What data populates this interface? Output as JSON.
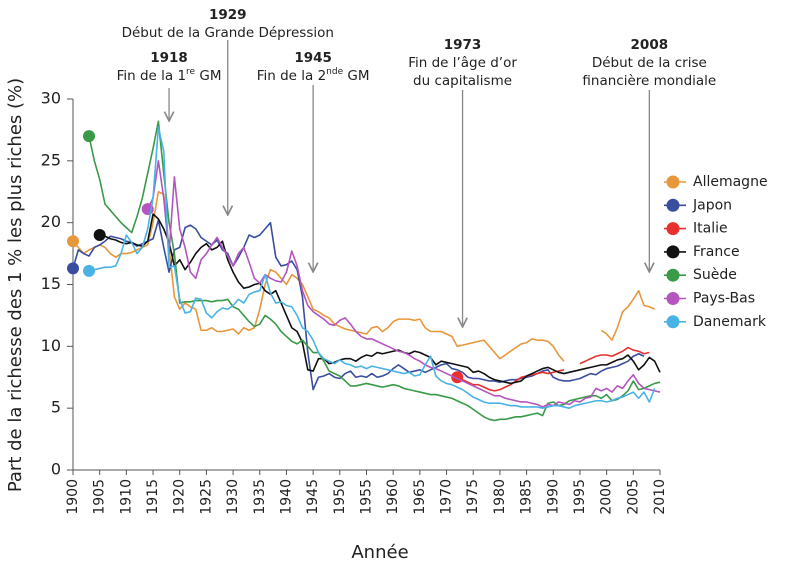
{
  "chart_data": {
    "type": "line",
    "y_label": "Part de la richesse des 1 % les plus riches (%)",
    "x_label": "Année",
    "xlim": [
      1900,
      2010
    ],
    "ylim": [
      0,
      30
    ],
    "xticks": [
      1900,
      1905,
      1910,
      1915,
      1920,
      1925,
      1930,
      1935,
      1940,
      1945,
      1950,
      1955,
      1960,
      1965,
      1970,
      1975,
      1980,
      1985,
      1990,
      1995,
      2000,
      2005,
      2010
    ],
    "yticks": [
      0,
      5,
      10,
      15,
      20,
      25,
      30
    ],
    "x": [
      1900,
      1901,
      1902,
      1903,
      1904,
      1905,
      1906,
      1907,
      1908,
      1909,
      1910,
      1911,
      1912,
      1913,
      1914,
      1915,
      1916,
      1917,
      1918,
      1919,
      1920,
      1921,
      1922,
      1923,
      1924,
      1925,
      1926,
      1927,
      1928,
      1929,
      1930,
      1931,
      1932,
      1933,
      1934,
      1935,
      1936,
      1937,
      1938,
      1939,
      1940,
      1941,
      1942,
      1943,
      1944,
      1945,
      1946,
      1947,
      1948,
      1949,
      1950,
      1951,
      1952,
      1953,
      1954,
      1955,
      1956,
      1957,
      1958,
      1959,
      1960,
      1961,
      1962,
      1963,
      1964,
      1965,
      1966,
      1967,
      1968,
      1969,
      1970,
      1971,
      1972,
      1973,
      1974,
      1975,
      1976,
      1977,
      1978,
      1979,
      1980,
      1981,
      1982,
      1983,
      1984,
      1985,
      1986,
      1987,
      1988,
      1989,
      1990,
      1991,
      1992,
      1993,
      1994,
      1995,
      1996,
      1997,
      1998,
      1999,
      2000,
      2001,
      2002,
      2003,
      2004,
      2005,
      2006,
      2007,
      2008,
      2009,
      2010
    ],
    "series": [
      {
        "name": "Allemagne",
        "color": "#e8973a",
        "values": [
          18.5,
          18,
          17.5,
          17.8,
          18,
          18.2,
          18,
          17.5,
          17.2,
          17.5,
          17.5,
          17.6,
          17.8,
          18,
          18.2,
          20,
          22.5,
          22.3,
          18,
          14,
          13,
          13.5,
          13.2,
          13,
          11.3,
          11.3,
          11.5,
          11.2,
          11.2,
          11.3,
          11.4,
          11,
          11.5,
          11.3,
          11.5,
          13,
          15,
          16.2,
          16,
          15.5,
          15,
          15.8,
          15.5,
          15,
          14,
          13,
          12.8,
          12.5,
          12.3,
          11.8,
          11.6,
          11.4,
          11.3,
          11.2,
          11.1,
          11,
          11.5,
          11.6,
          11.2,
          11.5,
          12,
          12.2,
          12.2,
          12.2,
          12.1,
          12.2,
          11.5,
          11.2,
          11.2,
          11.2,
          11,
          10.8,
          10,
          10.1,
          10.2,
          10.3,
          10.4,
          10.5,
          10,
          9.5,
          9,
          9.3,
          9.6,
          9.9,
          10.2,
          10.3,
          10.6,
          10.5,
          10.5,
          10.4,
          10,
          9.3,
          8.8,
          null,
          null,
          null,
          null,
          null,
          null,
          11.3,
          11,
          10.5,
          11.5,
          12.8,
          13.2,
          13.8,
          14.5,
          13.3,
          13.2,
          13,
          null
        ]
      },
      {
        "name": "Japon",
        "color": "#3a4ea0",
        "values": [
          16.3,
          17.8,
          17.5,
          17.3,
          18,
          18.2,
          18.5,
          18.9,
          18.8,
          18.7,
          18.5,
          18.4,
          18.1,
          18.3,
          18.5,
          18.7,
          20.2,
          18,
          16,
          17.8,
          18,
          19.6,
          19.8,
          19.5,
          18.8,
          18.5,
          18.2,
          18.6,
          17.8,
          17.5,
          16.5,
          17.2,
          18,
          19,
          18.8,
          19,
          19.5,
          20,
          17.2,
          16.5,
          16.6,
          16.9,
          16.2,
          14,
          9.5,
          6.5,
          7.5,
          7.6,
          7.8,
          7.5,
          7.4,
          7.8,
          8,
          7.5,
          7.6,
          7.5,
          7.8,
          7.5,
          7.6,
          7.8,
          8.2,
          8.5,
          8.2,
          7.9,
          8,
          8.1,
          7.9,
          8.1,
          8.3,
          8.5,
          8.6,
          8.2,
          8.1,
          7.9,
          7.5,
          7.4,
          7.4,
          7.3,
          7.2,
          7.2,
          7.1,
          7.2,
          7.3,
          7.3,
          7.4,
          7.5,
          7.6,
          7.8,
          8,
          8.1,
          7.5,
          7.3,
          7.2,
          7.2,
          7.3,
          7.4,
          7.6,
          7.8,
          7.7,
          8,
          8.2,
          8.3,
          8.4,
          8.6,
          8.8,
          9.2,
          9.4,
          9.2,
          null,
          null,
          null
        ]
      },
      {
        "name": "Italie",
        "color": "#e8302c",
        "values": [
          null,
          null,
          null,
          null,
          null,
          null,
          null,
          null,
          null,
          null,
          null,
          null,
          null,
          null,
          null,
          null,
          null,
          null,
          null,
          null,
          null,
          null,
          null,
          null,
          null,
          null,
          null,
          null,
          null,
          null,
          null,
          null,
          null,
          null,
          null,
          null,
          null,
          null,
          null,
          null,
          null,
          null,
          null,
          null,
          null,
          null,
          null,
          null,
          null,
          null,
          null,
          null,
          null,
          null,
          null,
          null,
          null,
          null,
          null,
          null,
          null,
          null,
          null,
          null,
          null,
          null,
          null,
          null,
          null,
          null,
          null,
          null,
          7.5,
          7.3,
          7.1,
          6.9,
          6.9,
          6.7,
          6.5,
          6.4,
          6.5,
          6.7,
          6.9,
          7.2,
          7.5,
          7.6,
          7.7,
          7.8,
          7.9,
          7.8,
          7.9,
          8,
          8.1,
          null,
          null,
          8.6,
          8.8,
          9,
          9.2,
          9.3,
          9.3,
          9.2,
          9.4,
          9.6,
          9.9,
          9.7,
          9.6,
          9.4,
          9.5,
          null,
          null
        ]
      },
      {
        "name": "France",
        "color": "#111111",
        "values": [
          null,
          null,
          null,
          null,
          null,
          19,
          18.9,
          18.7,
          18.6,
          18.4,
          18.3,
          18.4,
          18.2,
          18.1,
          18.5,
          20.7,
          20.3,
          19.5,
          18.4,
          16.5,
          17,
          16.2,
          16.8,
          17.5,
          18,
          18.3,
          17.8,
          18,
          18.5,
          17,
          16,
          15.2,
          14.7,
          14.8,
          15,
          15.1,
          14.5,
          14.2,
          14.5,
          13.5,
          12.5,
          11.5,
          11.2,
          10.3,
          8.1,
          8,
          9,
          9,
          8.6,
          8.7,
          8.9,
          9,
          9,
          8.8,
          9.1,
          9.3,
          9.2,
          9.5,
          9.4,
          9.5,
          9.6,
          9.7,
          9.5,
          9.4,
          9.6,
          9.5,
          9.3,
          9.1,
          8.5,
          8.8,
          8.7,
          8.6,
          8.5,
          8.4,
          8.3,
          7.9,
          8,
          7.8,
          7.5,
          7.3,
          7.2,
          7.1,
          7,
          7.1,
          7.2,
          7.6,
          7.8,
          8,
          8.2,
          8.3,
          8.1,
          7.9,
          7.8,
          7.9,
          8,
          8.1,
          8.2,
          8.3,
          8.4,
          8.5,
          8.5,
          8.7,
          8.9,
          9,
          9.3,
          8.8,
          8.1,
          8.5,
          9.1,
          8.8,
          7.9
        ]
      },
      {
        "name": "Suède",
        "color": "#3a9a48",
        "values": [
          null,
          null,
          null,
          27,
          25,
          23.5,
          21.5,
          21,
          20.5,
          20,
          19.6,
          19.2,
          20.5,
          22,
          24,
          26,
          28.2,
          24,
          20,
          17.5,
          13.5,
          13.6,
          13.6,
          13.7,
          13.7,
          13.7,
          13.6,
          13.7,
          13.7,
          13.8,
          13.2,
          13,
          12.5,
          12,
          11.6,
          11.8,
          12.5,
          12.2,
          11.8,
          11.2,
          10.8,
          10.4,
          10.2,
          10.5,
          10,
          9.5,
          9.5,
          8.8,
          8,
          7.8,
          7.6,
          7.2,
          6.8,
          6.8,
          6.9,
          7,
          6.9,
          6.8,
          6.7,
          6.8,
          6.9,
          6.8,
          6.6,
          6.5,
          6.4,
          6.3,
          6.2,
          6.1,
          6.1,
          6,
          5.9,
          5.8,
          5.6,
          5.4,
          5.2,
          4.9,
          4.6,
          4.3,
          4.1,
          4,
          4.1,
          4.1,
          4.2,
          4.3,
          4.3,
          4.4,
          4.5,
          4.6,
          4.4,
          5.4,
          5.5,
          5.2,
          5.3,
          5.6,
          5.7,
          5.8,
          5.9,
          6,
          6,
          5.8,
          6.1,
          5.6,
          5.7,
          6,
          6.4,
          7.2,
          6.5,
          6.6,
          6.8,
          7,
          7.1
        ]
      },
      {
        "name": "Pays-Bas",
        "color": "#b455c0",
        "values": [
          null,
          null,
          null,
          null,
          null,
          null,
          null,
          null,
          null,
          null,
          null,
          null,
          null,
          null,
          21.1,
          22,
          25,
          22,
          17.5,
          23.7,
          19.5,
          18,
          16,
          15.5,
          17,
          17.5,
          18.2,
          18.8,
          18,
          17.3,
          16.5,
          17.5,
          18,
          16.8,
          15.5,
          15.1,
          15.8,
          15.5,
          15.3,
          15.2,
          16,
          17.7,
          16.5,
          14.5,
          13.3,
          12.8,
          12.5,
          12.2,
          11.8,
          11.7,
          12.1,
          12.3,
          11.8,
          11.2,
          10.8,
          10.6,
          10.6,
          10.4,
          10.2,
          10,
          9.8,
          9.6,
          9.5,
          9.3,
          9,
          8.8,
          8.5,
          8.3,
          8.2,
          8,
          7.8,
          7.6,
          7.4,
          7.2,
          7,
          6.8,
          6.6,
          6.4,
          6.2,
          6,
          6,
          5.8,
          5.7,
          5.6,
          5.5,
          5.5,
          5.4,
          5.3,
          5.1,
          5.3,
          5.2,
          5.5,
          5.4,
          5.3,
          5.6,
          5.5,
          5.8,
          5.9,
          6.6,
          6.4,
          6.6,
          6.3,
          6.8,
          6.6,
          7.2,
          7.7,
          7,
          6.6,
          6.5,
          6.4,
          6.3
        ]
      },
      {
        "name": "Danemark",
        "color": "#4ab3e6",
        "values": [
          null,
          null,
          null,
          16.1,
          16.2,
          16.3,
          16.4,
          16.4,
          16.5,
          17.5,
          19,
          18.4,
          17.5,
          18,
          19.5,
          22,
          27.7,
          25.8,
          16.4,
          16.5,
          13.8,
          12.7,
          12.8,
          13.9,
          13.8,
          12.7,
          12.3,
          12.8,
          13.1,
          13,
          13.3,
          13.8,
          13.5,
          14.2,
          14.4,
          14.5,
          15.8,
          14.3,
          13.5,
          13.6,
          13.3,
          13.2,
          12.5,
          11.5,
          11.2,
          10.5,
          9.5,
          9,
          8.8,
          8.6,
          8.9,
          8.6,
          8.5,
          8.3,
          8.4,
          8.2,
          8.4,
          8.3,
          8.2,
          8.1,
          8,
          7.9,
          7.8,
          7.9,
          7.6,
          7.7,
          8.5,
          9.2,
          7.6,
          7.2,
          7,
          6.9,
          6.7,
          6.5,
          6.2,
          5.9,
          5.7,
          5.5,
          5.4,
          5.4,
          5.4,
          5.3,
          5.2,
          5.2,
          5.1,
          5.1,
          5.1,
          5.1,
          5,
          5.1,
          5.2,
          5.2,
          5.1,
          5,
          5.2,
          5.3,
          5.4,
          5.5,
          5.6,
          5.6,
          5.5,
          5.6,
          5.8,
          5.9,
          6.1,
          6.3,
          5.8,
          6.3,
          5.5,
          6.6,
          null
        ]
      }
    ],
    "annotations": [
      {
        "year": "1918",
        "lines": [
          [
            {
              "text": "Fin de la 1"
            },
            {
              "text": "re",
              "sup": true
            },
            {
              "text": " GM"
            }
          ]
        ]
      },
      {
        "year": "1929",
        "lines": [
          [
            {
              "text": "Début de la Grande Dépression"
            }
          ]
        ]
      },
      {
        "year": "1945",
        "lines": [
          [
            {
              "text": "Fin de la 2"
            },
            {
              "text": "nde",
              "sup": true
            },
            {
              "text": " GM"
            }
          ]
        ]
      },
      {
        "year": "1973",
        "lines": [
          [
            {
              "text": "Fin de l’âge d’or"
            }
          ],
          [
            {
              "text": "du capitalisme"
            }
          ]
        ]
      },
      {
        "year": "2008",
        "lines": [
          [
            {
              "text": "Début de la crise"
            }
          ],
          [
            {
              "text": "financière mondiale"
            }
          ]
        ]
      }
    ]
  }
}
